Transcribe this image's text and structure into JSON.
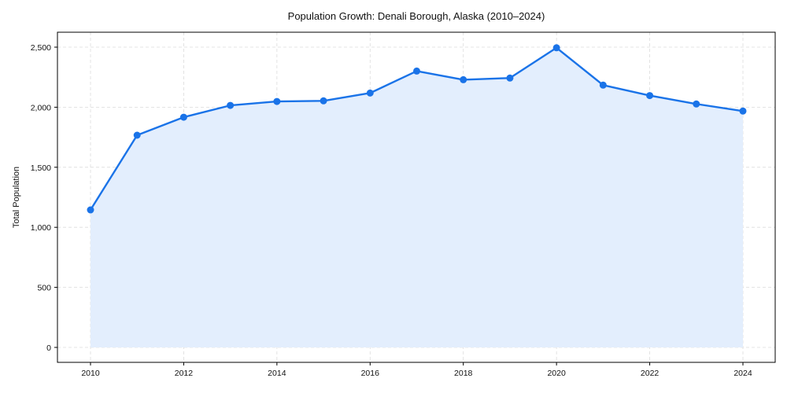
{
  "chart_data": {
    "type": "line",
    "title": "Population Growth: Denali Borough, Alaska (2010–2024)",
    "xlabel": "",
    "ylabel": "Total Population",
    "x": [
      2010,
      2011,
      2012,
      2013,
      2014,
      2015,
      2016,
      2017,
      2018,
      2019,
      2020,
      2021,
      2022,
      2023,
      2024
    ],
    "series": [
      {
        "name": "Total Population",
        "values": [
          1145,
          1767,
          1917,
          2015,
          2048,
          2053,
          2118,
          2301,
          2229,
          2243,
          2495,
          2184,
          2097,
          2027,
          1968
        ],
        "color": "#1a73e8",
        "fill": "#e3eefd"
      }
    ],
    "ylim": [
      -125,
      2625
    ],
    "xlim": [
      2009.3,
      2024.7
    ],
    "yticks": [
      0,
      500,
      1000,
      1500,
      2000,
      2500
    ],
    "ytick_labels": [
      "0",
      "500",
      "1,000",
      "1,500",
      "2,000",
      "2,500"
    ],
    "xticks": [
      2010,
      2012,
      2014,
      2016,
      2018,
      2020,
      2022,
      2024
    ],
    "xtick_labels": [
      "2010",
      "2012",
      "2014",
      "2016",
      "2018",
      "2020",
      "2022",
      "2024"
    ],
    "grid": true,
    "legend": null
  }
}
